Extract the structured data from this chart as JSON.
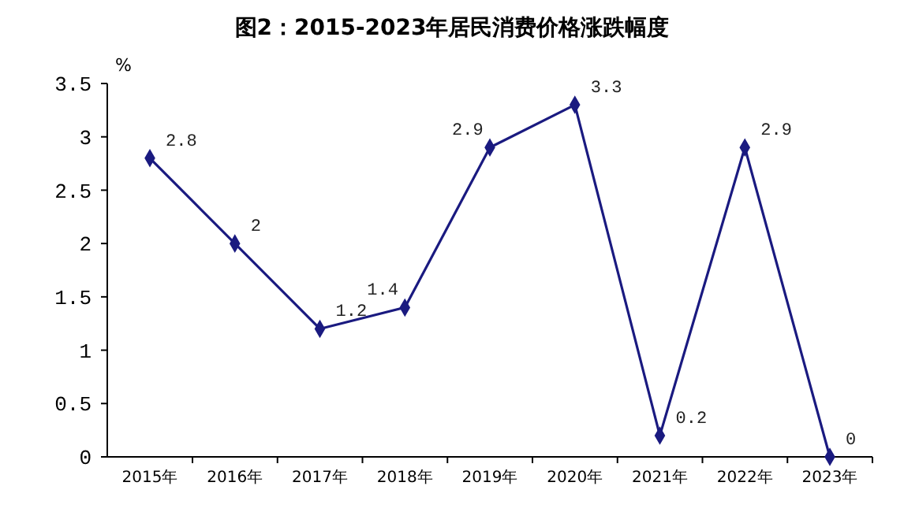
{
  "chart_data": {
    "type": "line",
    "title": "图2：2015-2023年居民消费价格涨跌幅度",
    "ylabel": "%",
    "categories": [
      "2015年",
      "2016年",
      "2017年",
      "2018年",
      "2019年",
      "2020年",
      "2021年",
      "2022年",
      "2023年"
    ],
    "series": [
      {
        "color": "#1a1a80",
        "values": [
          2.8,
          2,
          1.2,
          1.4,
          2.9,
          3.3,
          0.2,
          2.9,
          0
        ]
      }
    ],
    "ylim": [
      0,
      3.5
    ],
    "yticks": [
      0,
      0.5,
      1,
      1.5,
      2,
      2.5,
      3,
      3.5
    ],
    "data_labels": true,
    "marker": "diamond",
    "line_style": "solid"
  }
}
